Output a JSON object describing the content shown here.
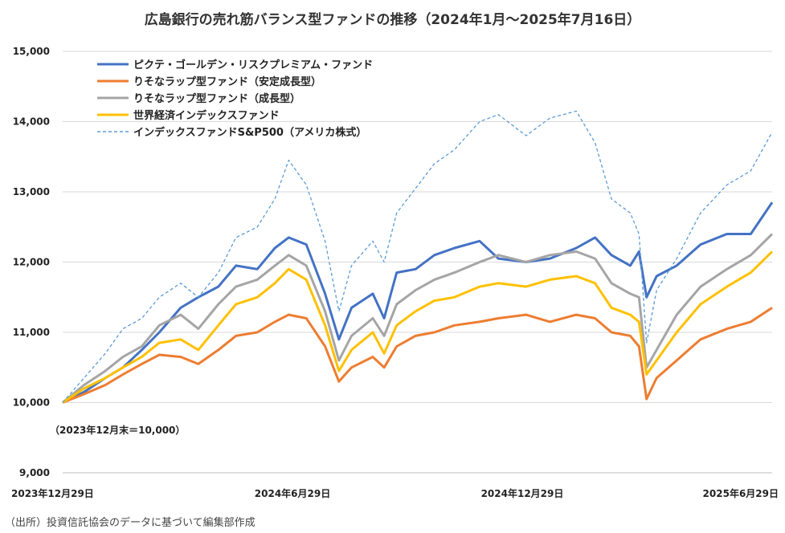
{
  "chart_data": {
    "type": "line",
    "title": "広島銀行の売れ筋バランス型ファンドの推移（2024年1月～2025年7月16日）",
    "source": "（出所）投資信託協会のデータに基づいて編集部作成",
    "base_note": "（2023年12月末＝10,000）",
    "ylim": [
      9000,
      15000
    ],
    "y_ticks": [
      "9,000",
      "10,000",
      "11,000",
      "12,000",
      "13,000",
      "14,000",
      "15,000"
    ],
    "y_tick_values": [
      9000,
      10000,
      11000,
      12000,
      13000,
      14000,
      15000
    ],
    "x_range": [
      "2023-12-29",
      "2025-07-16"
    ],
    "x_ticks": [
      {
        "date": "2023-12-29",
        "label": "2023年12月29日"
      },
      {
        "date": "2024-06-29",
        "label": "2024年6月29日"
      },
      {
        "date": "2024-12-29",
        "label": "2024年12月29日"
      },
      {
        "date": "2025-06-29",
        "label": "2025年6月29日"
      }
    ],
    "grid": "horizontal",
    "legend_position": "top-left",
    "series": [
      {
        "name": "ピクテ・ゴールデン・リスクプレミアム・ファンド",
        "color": "#4472C4",
        "style": "solid",
        "points": [
          [
            "2023-12-29",
            10000
          ],
          [
            "2024-01-15",
            10150
          ],
          [
            "2024-02-01",
            10350
          ],
          [
            "2024-02-15",
            10500
          ],
          [
            "2024-03-01",
            10750
          ],
          [
            "2024-03-15",
            11000
          ],
          [
            "2024-04-01",
            11350
          ],
          [
            "2024-04-15",
            11500
          ],
          [
            "2024-05-01",
            11650
          ],
          [
            "2024-05-15",
            11950
          ],
          [
            "2024-06-01",
            11900
          ],
          [
            "2024-06-15",
            12200
          ],
          [
            "2024-06-26",
            12350
          ],
          [
            "2024-07-10",
            12250
          ],
          [
            "2024-07-25",
            11550
          ],
          [
            "2024-08-05",
            10900
          ],
          [
            "2024-08-15",
            11350
          ],
          [
            "2024-09-01",
            11550
          ],
          [
            "2024-09-10",
            11200
          ],
          [
            "2024-09-20",
            11850
          ],
          [
            "2024-10-05",
            11900
          ],
          [
            "2024-10-20",
            12100
          ],
          [
            "2024-11-05",
            12200
          ],
          [
            "2024-11-25",
            12300
          ],
          [
            "2024-12-10",
            12050
          ],
          [
            "2025-01-01",
            12000
          ],
          [
            "2025-01-20",
            12050
          ],
          [
            "2025-02-10",
            12200
          ],
          [
            "2025-02-25",
            12350
          ],
          [
            "2025-03-10",
            12100
          ],
          [
            "2025-03-25",
            11950
          ],
          [
            "2025-04-01",
            12150
          ],
          [
            "2025-04-07",
            11500
          ],
          [
            "2025-04-15",
            11800
          ],
          [
            "2025-05-01",
            11950
          ],
          [
            "2025-05-20",
            12250
          ],
          [
            "2025-06-10",
            12400
          ],
          [
            "2025-06-29",
            12400
          ],
          [
            "2025-07-16",
            12850
          ]
        ]
      },
      {
        "name": "りそなラップ型ファンド（安定成長型）",
        "color": "#ED7D31",
        "style": "solid",
        "points": [
          [
            "2023-12-29",
            10000
          ],
          [
            "2024-01-15",
            10120
          ],
          [
            "2024-02-01",
            10250
          ],
          [
            "2024-02-15",
            10400
          ],
          [
            "2024-03-01",
            10550
          ],
          [
            "2024-03-15",
            10680
          ],
          [
            "2024-04-01",
            10650
          ],
          [
            "2024-04-15",
            10550
          ],
          [
            "2024-05-01",
            10750
          ],
          [
            "2024-05-15",
            10950
          ],
          [
            "2024-06-01",
            11000
          ],
          [
            "2024-06-15",
            11150
          ],
          [
            "2024-06-26",
            11250
          ],
          [
            "2024-07-10",
            11200
          ],
          [
            "2024-07-25",
            10800
          ],
          [
            "2024-08-05",
            10300
          ],
          [
            "2024-08-15",
            10500
          ],
          [
            "2024-09-01",
            10650
          ],
          [
            "2024-09-10",
            10500
          ],
          [
            "2024-09-20",
            10800
          ],
          [
            "2024-10-05",
            10950
          ],
          [
            "2024-10-20",
            11000
          ],
          [
            "2024-11-05",
            11100
          ],
          [
            "2024-11-25",
            11150
          ],
          [
            "2024-12-10",
            11200
          ],
          [
            "2025-01-01",
            11250
          ],
          [
            "2025-01-20",
            11150
          ],
          [
            "2025-02-10",
            11250
          ],
          [
            "2025-02-25",
            11200
          ],
          [
            "2025-03-10",
            11000
          ],
          [
            "2025-03-25",
            10950
          ],
          [
            "2025-04-01",
            10800
          ],
          [
            "2025-04-07",
            10050
          ],
          [
            "2025-04-15",
            10350
          ],
          [
            "2025-05-01",
            10600
          ],
          [
            "2025-05-20",
            10900
          ],
          [
            "2025-06-10",
            11050
          ],
          [
            "2025-06-29",
            11150
          ],
          [
            "2025-07-16",
            11350
          ]
        ]
      },
      {
        "name": "りそなラップ型ファンド（成長型）",
        "color": "#A5A5A5",
        "style": "solid",
        "points": [
          [
            "2023-12-29",
            10000
          ],
          [
            "2024-01-15",
            10250
          ],
          [
            "2024-02-01",
            10450
          ],
          [
            "2024-02-15",
            10650
          ],
          [
            "2024-03-01",
            10800
          ],
          [
            "2024-03-15",
            11100
          ],
          [
            "2024-04-01",
            11250
          ],
          [
            "2024-04-15",
            11050
          ],
          [
            "2024-05-01",
            11400
          ],
          [
            "2024-05-15",
            11650
          ],
          [
            "2024-06-01",
            11750
          ],
          [
            "2024-06-15",
            11950
          ],
          [
            "2024-06-26",
            12100
          ],
          [
            "2024-07-10",
            11950
          ],
          [
            "2024-07-25",
            11300
          ],
          [
            "2024-08-05",
            10600
          ],
          [
            "2024-08-15",
            10950
          ],
          [
            "2024-09-01",
            11200
          ],
          [
            "2024-09-10",
            10950
          ],
          [
            "2024-09-20",
            11400
          ],
          [
            "2024-10-05",
            11600
          ],
          [
            "2024-10-20",
            11750
          ],
          [
            "2024-11-05",
            11850
          ],
          [
            "2024-11-25",
            12000
          ],
          [
            "2024-12-10",
            12100
          ],
          [
            "2025-01-01",
            12000
          ],
          [
            "2025-01-20",
            12100
          ],
          [
            "2025-02-10",
            12150
          ],
          [
            "2025-02-25",
            12050
          ],
          [
            "2025-03-10",
            11700
          ],
          [
            "2025-03-25",
            11550
          ],
          [
            "2025-04-01",
            11500
          ],
          [
            "2025-04-07",
            10500
          ],
          [
            "2025-04-15",
            10750
          ],
          [
            "2025-05-01",
            11250
          ],
          [
            "2025-05-20",
            11650
          ],
          [
            "2025-06-10",
            11900
          ],
          [
            "2025-06-29",
            12100
          ],
          [
            "2025-07-16",
            12400
          ]
        ]
      },
      {
        "name": "世界経済インデックスファンド",
        "color": "#FFC000",
        "style": "solid",
        "points": [
          [
            "2023-12-29",
            10000
          ],
          [
            "2024-01-15",
            10200
          ],
          [
            "2024-02-01",
            10350
          ],
          [
            "2024-02-15",
            10500
          ],
          [
            "2024-03-01",
            10650
          ],
          [
            "2024-03-15",
            10850
          ],
          [
            "2024-04-01",
            10900
          ],
          [
            "2024-04-15",
            10750
          ],
          [
            "2024-05-01",
            11100
          ],
          [
            "2024-05-15",
            11400
          ],
          [
            "2024-06-01",
            11500
          ],
          [
            "2024-06-15",
            11700
          ],
          [
            "2024-06-26",
            11900
          ],
          [
            "2024-07-10",
            11750
          ],
          [
            "2024-07-25",
            11100
          ],
          [
            "2024-08-05",
            10450
          ],
          [
            "2024-08-15",
            10750
          ],
          [
            "2024-09-01",
            11000
          ],
          [
            "2024-09-10",
            10700
          ],
          [
            "2024-09-20",
            11100
          ],
          [
            "2024-10-05",
            11300
          ],
          [
            "2024-10-20",
            11450
          ],
          [
            "2024-11-05",
            11500
          ],
          [
            "2024-11-25",
            11650
          ],
          [
            "2024-12-10",
            11700
          ],
          [
            "2025-01-01",
            11650
          ],
          [
            "2025-01-20",
            11750
          ],
          [
            "2025-02-10",
            11800
          ],
          [
            "2025-02-25",
            11700
          ],
          [
            "2025-03-10",
            11350
          ],
          [
            "2025-03-25",
            11250
          ],
          [
            "2025-04-01",
            11150
          ],
          [
            "2025-04-07",
            10400
          ],
          [
            "2025-04-15",
            10600
          ],
          [
            "2025-05-01",
            11000
          ],
          [
            "2025-05-20",
            11400
          ],
          [
            "2025-06-10",
            11650
          ],
          [
            "2025-06-29",
            11850
          ],
          [
            "2025-07-16",
            12150
          ]
        ]
      },
      {
        "name": "インデックスファンドS&P500（アメリカ株式）",
        "color": "#5B9BD5",
        "style": "dashed",
        "points": [
          [
            "2023-12-29",
            10000
          ],
          [
            "2024-01-15",
            10350
          ],
          [
            "2024-02-01",
            10700
          ],
          [
            "2024-02-15",
            11050
          ],
          [
            "2024-03-01",
            11200
          ],
          [
            "2024-03-15",
            11500
          ],
          [
            "2024-04-01",
            11700
          ],
          [
            "2024-04-15",
            11500
          ],
          [
            "2024-05-01",
            11850
          ],
          [
            "2024-05-15",
            12350
          ],
          [
            "2024-06-01",
            12500
          ],
          [
            "2024-06-15",
            12900
          ],
          [
            "2024-06-26",
            13450
          ],
          [
            "2024-07-10",
            13100
          ],
          [
            "2024-07-25",
            12300
          ],
          [
            "2024-08-05",
            11300
          ],
          [
            "2024-08-15",
            11950
          ],
          [
            "2024-09-01",
            12300
          ],
          [
            "2024-09-10",
            12000
          ],
          [
            "2024-09-20",
            12700
          ],
          [
            "2024-10-05",
            13050
          ],
          [
            "2024-10-20",
            13400
          ],
          [
            "2024-11-05",
            13600
          ],
          [
            "2024-11-25",
            14000
          ],
          [
            "2024-12-10",
            14100
          ],
          [
            "2025-01-01",
            13800
          ],
          [
            "2025-01-20",
            14050
          ],
          [
            "2025-02-10",
            14150
          ],
          [
            "2025-02-25",
            13700
          ],
          [
            "2025-03-10",
            12900
          ],
          [
            "2025-03-25",
            12700
          ],
          [
            "2025-04-01",
            12400
          ],
          [
            "2025-04-07",
            10850
          ],
          [
            "2025-04-15",
            11600
          ],
          [
            "2025-05-01",
            12050
          ],
          [
            "2025-05-20",
            12700
          ],
          [
            "2025-06-10",
            13100
          ],
          [
            "2025-06-29",
            13300
          ],
          [
            "2025-07-16",
            13850
          ]
        ]
      }
    ]
  }
}
